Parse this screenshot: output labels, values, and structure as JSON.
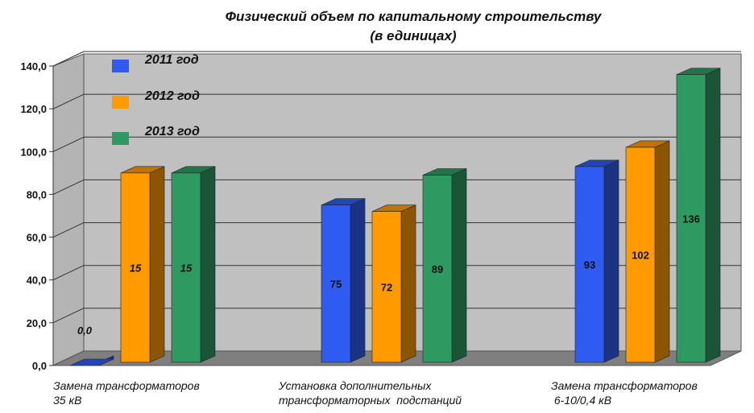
{
  "chart_data": {
    "type": "bar",
    "title": "Физический объем по капитальному строительству",
    "subtitle": "(в единицах)",
    "categories": [
      [
        "Замена трансформаторов",
        "35 кВ"
      ],
      [
        "Установка дополнительных",
        "трансформаторных  подстанций"
      ],
      [
        "Замена трансформаторов",
        " 6-10/0,4 кВ"
      ]
    ],
    "series": [
      {
        "name": "2011 год",
        "color": "#2f5cf0",
        "values": [
          0,
          75,
          93
        ],
        "value_positions": [
          0,
          75,
          93
        ],
        "labels": [
          "0,0",
          "75",
          "93"
        ]
      },
      {
        "name": "2012 год",
        "color": "#ff9a00",
        "values": [
          15,
          72,
          102
        ],
        "value_positions": [
          90,
          72,
          102
        ],
        "labels": [
          "15",
          "72",
          "102"
        ]
      },
      {
        "name": "2013 год",
        "color": "#2e9a62",
        "values": [
          15,
          89,
          136
        ],
        "value_positions": [
          90,
          89,
          136
        ],
        "labels": [
          "15",
          "89",
          "136"
        ]
      }
    ],
    "ylim": [
      0,
      140
    ],
    "yticks": [
      "0,0",
      "20,0",
      "40,0",
      "60,0",
      "80,0",
      "100,0",
      "120,0",
      "140,0"
    ],
    "grid": true,
    "legend": "top-left",
    "style": "3d-bar"
  }
}
